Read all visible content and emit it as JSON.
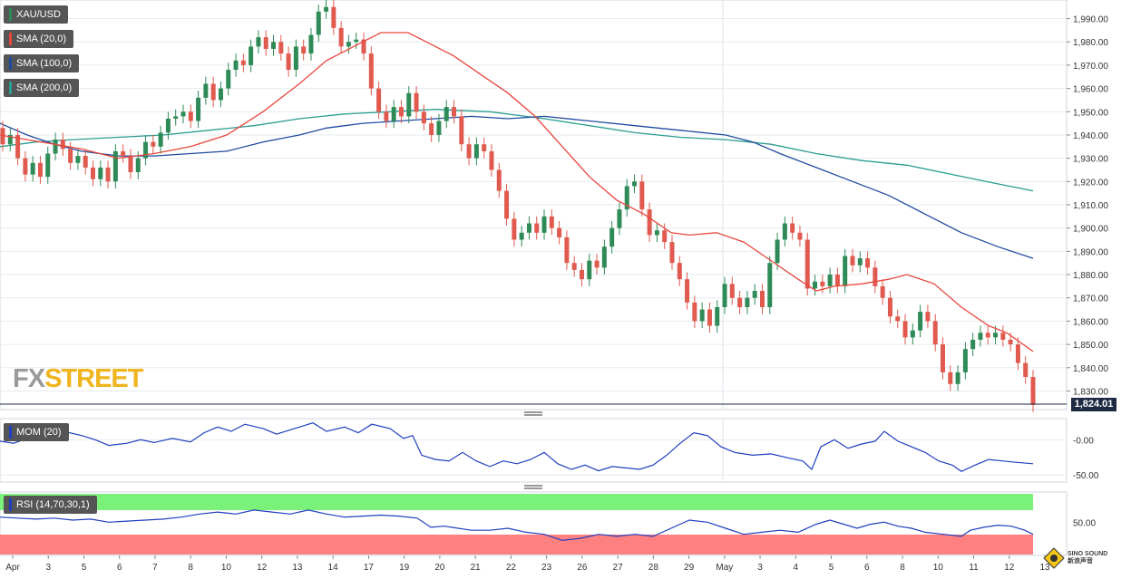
{
  "instrument": "XAU/USD",
  "legend": {
    "symbol": "XAU/USD",
    "sma20": "SMA (20,0)",
    "sma100": "SMA (100,0)",
    "sma200": "SMA (200,0)",
    "mom": "MOM (20)",
    "rsi": "RSI (14,70,30,1)"
  },
  "colors": {
    "up": "#2e8b57",
    "down": "#e05a4f",
    "sma20": "#e8473c",
    "sma100": "#1f4aa0",
    "sma200": "#2a9d8f",
    "indicator": "#1f3fbf",
    "rsi_overbought": "#7af27a",
    "rsi_oversold": "#ff8080"
  },
  "current_price": "1,824.01",
  "logo": {
    "fx": "FX",
    "street": "STREET"
  },
  "watermark": {
    "line1": "SINO SOUND",
    "line2": "新浪声音"
  },
  "chart_data": {
    "type": "candlestick",
    "price_axis": {
      "range": [
        1822,
        1998
      ],
      "ticks": [
        "1,830.00",
        "1,840.00",
        "1,850.00",
        "1,860.00",
        "1,870.00",
        "1,880.00",
        "1,890.00",
        "1,900.00",
        "1,910.00",
        "1,920.00",
        "1,930.00",
        "1,940.00",
        "1,950.00",
        "1,960.00",
        "1,970.00",
        "1,980.00",
        "1,990.00"
      ]
    },
    "x_axis_labels": [
      "Apr",
      "3",
      "5",
      "6",
      "7",
      "8",
      "10",
      "12",
      "13",
      "14",
      "17",
      "19",
      "20",
      "21",
      "22",
      "23",
      "26",
      "27",
      "28",
      "29",
      "May",
      "3",
      "4",
      "5",
      "6",
      "8",
      "10",
      "11",
      "12",
      "13"
    ],
    "candles": [
      [
        1943,
        1936
      ],
      [
        1936,
        1940
      ],
      [
        1940,
        1930
      ],
      [
        1930,
        1923
      ],
      [
        1923,
        1928
      ],
      [
        1928,
        1922
      ],
      [
        1922,
        1932
      ],
      [
        1932,
        1938
      ],
      [
        1938,
        1934
      ],
      [
        1934,
        1928
      ],
      [
        1928,
        1931
      ],
      [
        1931,
        1926
      ],
      [
        1926,
        1921
      ],
      [
        1921,
        1926
      ],
      [
        1926,
        1920
      ],
      [
        1920,
        1933
      ],
      [
        1933,
        1931
      ],
      [
        1931,
        1924
      ],
      [
        1924,
        1930
      ],
      [
        1930,
        1937
      ],
      [
        1937,
        1935
      ],
      [
        1935,
        1941
      ],
      [
        1941,
        1947
      ],
      [
        1947,
        1948
      ],
      [
        1948,
        1950
      ],
      [
        1950,
        1946
      ],
      [
        1946,
        1956
      ],
      [
        1956,
        1962
      ],
      [
        1962,
        1955
      ],
      [
        1955,
        1960
      ],
      [
        1960,
        1968
      ],
      [
        1968,
        1972
      ],
      [
        1972,
        1970
      ],
      [
        1970,
        1978
      ],
      [
        1978,
        1982
      ],
      [
        1982,
        1977
      ],
      [
        1977,
        1980
      ],
      [
        1980,
        1975
      ],
      [
        1975,
        1968
      ],
      [
        1968,
        1978
      ],
      [
        1978,
        1975
      ],
      [
        1975,
        1983
      ],
      [
        1983,
        1993
      ],
      [
        1993,
        1995
      ],
      [
        1995,
        1986
      ],
      [
        1986,
        1978
      ],
      [
        1978,
        1980
      ],
      [
        1980,
        1981
      ],
      [
        1981,
        1975
      ],
      [
        1975,
        1960
      ],
      [
        1960,
        1950
      ],
      [
        1950,
        1946
      ],
      [
        1946,
        1952
      ],
      [
        1952,
        1948
      ],
      [
        1948,
        1958
      ],
      [
        1958,
        1950
      ],
      [
        1950,
        1945
      ],
      [
        1945,
        1940
      ],
      [
        1940,
        1946
      ],
      [
        1946,
        1952
      ],
      [
        1952,
        1948
      ],
      [
        1948,
        1936
      ],
      [
        1936,
        1930
      ],
      [
        1930,
        1936
      ],
      [
        1936,
        1933
      ],
      [
        1933,
        1925
      ],
      [
        1925,
        1916
      ],
      [
        1916,
        1904
      ],
      [
        1904,
        1895
      ],
      [
        1895,
        1898
      ],
      [
        1898,
        1902
      ],
      [
        1902,
        1898
      ],
      [
        1898,
        1905
      ],
      [
        1905,
        1900
      ],
      [
        1900,
        1896
      ],
      [
        1896,
        1885
      ],
      [
        1885,
        1882
      ],
      [
        1882,
        1878
      ],
      [
        1878,
        1886
      ],
      [
        1886,
        1883
      ],
      [
        1883,
        1892
      ],
      [
        1892,
        1900
      ],
      [
        1900,
        1908
      ],
      [
        1908,
        1918
      ],
      [
        1918,
        1920
      ],
      [
        1920,
        1908
      ],
      [
        1908,
        1897
      ],
      [
        1897,
        1899
      ],
      [
        1899,
        1894
      ],
      [
        1894,
        1885
      ],
      [
        1885,
        1878
      ],
      [
        1878,
        1868
      ],
      [
        1868,
        1860
      ],
      [
        1860,
        1865
      ],
      [
        1865,
        1858
      ],
      [
        1858,
        1866
      ],
      [
        1866,
        1876
      ],
      [
        1876,
        1870
      ],
      [
        1870,
        1866
      ],
      [
        1866,
        1870
      ],
      [
        1870,
        1873
      ],
      [
        1873,
        1866
      ],
      [
        1866,
        1885
      ],
      [
        1885,
        1895
      ],
      [
        1895,
        1902
      ],
      [
        1902,
        1898
      ],
      [
        1898,
        1895
      ],
      [
        1895,
        1874
      ],
      [
        1874,
        1877
      ],
      [
        1877,
        1875
      ],
      [
        1875,
        1880
      ],
      [
        1880,
        1875
      ],
      [
        1875,
        1888
      ],
      [
        1888,
        1884
      ],
      [
        1884,
        1887
      ],
      [
        1887,
        1883
      ],
      [
        1883,
        1875
      ],
      [
        1875,
        1870
      ],
      [
        1870,
        1862
      ],
      [
        1862,
        1860
      ],
      [
        1860,
        1853
      ],
      [
        1853,
        1856
      ],
      [
        1856,
        1864
      ],
      [
        1864,
        1860
      ],
      [
        1860,
        1850
      ],
      [
        1850,
        1838
      ],
      [
        1838,
        1833
      ],
      [
        1833,
        1838
      ],
      [
        1838,
        1848
      ],
      [
        1848,
        1852
      ],
      [
        1852,
        1855
      ],
      [
        1855,
        1853
      ],
      [
        1853,
        1855
      ],
      [
        1855,
        1852
      ],
      [
        1852,
        1850
      ],
      [
        1850,
        1842
      ],
      [
        1842,
        1836
      ],
      [
        1836,
        1824
      ]
    ],
    "sma20": [
      [
        0,
        1940
      ],
      [
        30,
        1938
      ],
      [
        60,
        1936
      ],
      [
        90,
        1934
      ],
      [
        130,
        1930
      ],
      [
        170,
        1932
      ],
      [
        210,
        1935
      ],
      [
        250,
        1940
      ],
      [
        290,
        1950
      ],
      [
        330,
        1962
      ],
      [
        360,
        1972
      ],
      [
        400,
        1980
      ],
      [
        420,
        1984
      ],
      [
        450,
        1984
      ],
      [
        470,
        1980
      ],
      [
        500,
        1974
      ],
      [
        530,
        1966
      ],
      [
        560,
        1958
      ],
      [
        590,
        1948
      ],
      [
        620,
        1935
      ],
      [
        650,
        1922
      ],
      [
        680,
        1912
      ],
      [
        710,
        1906
      ],
      [
        740,
        1898
      ],
      [
        760,
        1897
      ],
      [
        790,
        1898
      ],
      [
        820,
        1894
      ],
      [
        850,
        1886
      ],
      [
        880,
        1878
      ],
      [
        900,
        1873
      ],
      [
        920,
        1875
      ],
      [
        950,
        1876
      ],
      [
        980,
        1878
      ],
      [
        1000,
        1880
      ],
      [
        1030,
        1876
      ],
      [
        1060,
        1866
      ],
      [
        1090,
        1858
      ],
      [
        1110,
        1855
      ],
      [
        1139,
        1847
      ]
    ],
    "sma100": [
      [
        0,
        1945
      ],
      [
        30,
        1940
      ],
      [
        60,
        1936
      ],
      [
        90,
        1933
      ],
      [
        130,
        1931
      ],
      [
        170,
        1931
      ],
      [
        210,
        1932
      ],
      [
        250,
        1933
      ],
      [
        290,
        1937
      ],
      [
        330,
        1940
      ],
      [
        360,
        1943
      ],
      [
        400,
        1945
      ],
      [
        440,
        1946
      ],
      [
        480,
        1947
      ],
      [
        520,
        1948
      ],
      [
        560,
        1947
      ],
      [
        600,
        1948
      ],
      [
        650,
        1946
      ],
      [
        700,
        1944
      ],
      [
        750,
        1942
      ],
      [
        800,
        1940
      ],
      [
        830,
        1937
      ],
      [
        860,
        1932
      ],
      [
        900,
        1926
      ],
      [
        940,
        1920
      ],
      [
        980,
        1914
      ],
      [
        1020,
        1906
      ],
      [
        1060,
        1898
      ],
      [
        1100,
        1892
      ],
      [
        1139,
        1887
      ]
    ],
    "sma200": [
      [
        0,
        1935
      ],
      [
        40,
        1937
      ],
      [
        80,
        1938
      ],
      [
        130,
        1939
      ],
      [
        180,
        1940
      ],
      [
        230,
        1942
      ],
      [
        280,
        1944
      ],
      [
        330,
        1947
      ],
      [
        380,
        1949
      ],
      [
        430,
        1950
      ],
      [
        480,
        1951
      ],
      [
        540,
        1950
      ],
      [
        600,
        1947
      ],
      [
        650,
        1944
      ],
      [
        700,
        1941
      ],
      [
        750,
        1939
      ],
      [
        800,
        1938
      ],
      [
        850,
        1936
      ],
      [
        900,
        1932
      ],
      [
        950,
        1929
      ],
      [
        1000,
        1927
      ],
      [
        1050,
        1923
      ],
      [
        1100,
        1919
      ],
      [
        1139,
        1916
      ]
    ],
    "momentum": {
      "label": "MOM (20)",
      "ticks": [
        "-0.00",
        "-50.00"
      ],
      "range": [
        -60,
        30
      ],
      "values": [
        [
          0,
          -2
        ],
        [
          15,
          -5
        ],
        [
          30,
          2
        ],
        [
          50,
          10
        ],
        [
          70,
          12
        ],
        [
          90,
          6
        ],
        [
          105,
          0
        ],
        [
          120,
          -8
        ],
        [
          140,
          -5
        ],
        [
          155,
          0
        ],
        [
          170,
          -4
        ],
        [
          190,
          2
        ],
        [
          210,
          -3
        ],
        [
          225,
          10
        ],
        [
          240,
          18
        ],
        [
          255,
          12
        ],
        [
          270,
          22
        ],
        [
          290,
          16
        ],
        [
          305,
          8
        ],
        [
          320,
          14
        ],
        [
          335,
          20
        ],
        [
          345,
          24
        ],
        [
          360,
          12
        ],
        [
          380,
          18
        ],
        [
          395,
          10
        ],
        [
          410,
          22
        ],
        [
          430,
          16
        ],
        [
          445,
          2
        ],
        [
          455,
          6
        ],
        [
          465,
          -22
        ],
        [
          480,
          -28
        ],
        [
          495,
          -30
        ],
        [
          510,
          -18
        ],
        [
          525,
          -30
        ],
        [
          540,
          -38
        ],
        [
          555,
          -30
        ],
        [
          570,
          -34
        ],
        [
          585,
          -28
        ],
        [
          600,
          -18
        ],
        [
          615,
          -34
        ],
        [
          630,
          -42
        ],
        [
          645,
          -36
        ],
        [
          660,
          -44
        ],
        [
          675,
          -38
        ],
        [
          690,
          -40
        ],
        [
          705,
          -42
        ],
        [
          720,
          -36
        ],
        [
          735,
          -22
        ],
        [
          750,
          -5
        ],
        [
          765,
          10
        ],
        [
          780,
          6
        ],
        [
          795,
          -10
        ],
        [
          810,
          -18
        ],
        [
          830,
          -22
        ],
        [
          850,
          -20
        ],
        [
          870,
          -26
        ],
        [
          885,
          -30
        ],
        [
          895,
          -42
        ],
        [
          905,
          -10
        ],
        [
          920,
          0
        ],
        [
          935,
          -12
        ],
        [
          950,
          -6
        ],
        [
          965,
          -2
        ],
        [
          975,
          12
        ],
        [
          990,
          -2
        ],
        [
          1005,
          -10
        ],
        [
          1020,
          -18
        ],
        [
          1035,
          -30
        ],
        [
          1050,
          -36
        ],
        [
          1060,
          -45
        ],
        [
          1075,
          -36
        ],
        [
          1090,
          -28
        ],
        [
          1105,
          -30
        ],
        [
          1120,
          -32
        ],
        [
          1139,
          -34
        ]
      ]
    },
    "rsi": {
      "label": "RSI (14,70,30,1)",
      "ticks": [
        "50.00"
      ],
      "levels": [
        70,
        30
      ],
      "values": [
        [
          0,
          55
        ],
        [
          20,
          54
        ],
        [
          40,
          53
        ],
        [
          60,
          54
        ],
        [
          80,
          52
        ],
        [
          100,
          53
        ],
        [
          120,
          50
        ],
        [
          140,
          51
        ],
        [
          160,
          52
        ],
        [
          180,
          53
        ],
        [
          200,
          55
        ],
        [
          220,
          58
        ],
        [
          240,
          60
        ],
        [
          260,
          58
        ],
        [
          280,
          62
        ],
        [
          300,
          60
        ],
        [
          320,
          58
        ],
        [
          340,
          62
        ],
        [
          360,
          58
        ],
        [
          380,
          55
        ],
        [
          400,
          56
        ],
        [
          420,
          57
        ],
        [
          440,
          56
        ],
        [
          460,
          54
        ],
        [
          475,
          45
        ],
        [
          490,
          46
        ],
        [
          505,
          44
        ],
        [
          520,
          42
        ],
        [
          540,
          42
        ],
        [
          560,
          44
        ],
        [
          580,
          40
        ],
        [
          600,
          38
        ],
        [
          620,
          32
        ],
        [
          640,
          34
        ],
        [
          660,
          38
        ],
        [
          680,
          36
        ],
        [
          700,
          38
        ],
        [
          720,
          36
        ],
        [
          740,
          44
        ],
        [
          760,
          52
        ],
        [
          780,
          50
        ],
        [
          800,
          44
        ],
        [
          820,
          38
        ],
        [
          840,
          40
        ],
        [
          860,
          42
        ],
        [
          880,
          40
        ],
        [
          900,
          48
        ],
        [
          915,
          52
        ],
        [
          930,
          48
        ],
        [
          945,
          44
        ],
        [
          960,
          48
        ],
        [
          975,
          50
        ],
        [
          990,
          46
        ],
        [
          1005,
          44
        ],
        [
          1020,
          40
        ],
        [
          1040,
          38
        ],
        [
          1060,
          36
        ],
        [
          1070,
          42
        ],
        [
          1085,
          45
        ],
        [
          1100,
          47
        ],
        [
          1115,
          46
        ],
        [
          1130,
          42
        ],
        [
          1139,
          38
        ]
      ]
    }
  }
}
